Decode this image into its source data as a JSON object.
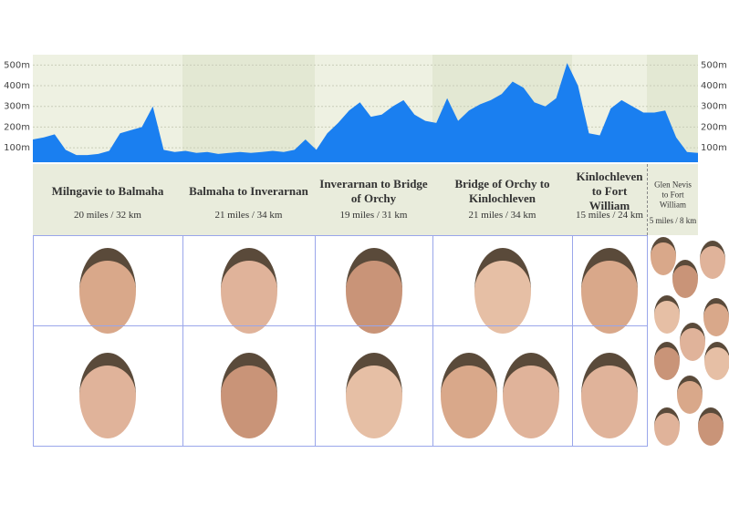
{
  "chart_data": {
    "type": "area",
    "color": "#1a7ff0",
    "values": [
      140,
      150,
      165,
      90,
      65,
      65,
      70,
      85,
      170,
      185,
      200,
      300,
      90,
      80,
      85,
      75,
      80,
      70,
      75,
      80,
      75,
      80,
      85,
      80,
      90,
      140,
      90,
      170,
      220,
      280,
      320,
      250,
      260,
      300,
      330,
      260,
      230,
      220,
      340,
      230,
      280,
      310,
      330,
      360,
      420,
      390,
      320,
      300,
      340,
      510,
      400,
      170,
      160,
      290,
      330,
      300,
      270,
      270,
      280,
      150,
      80,
      75
    ],
    "ylim": [
      30,
      550
    ],
    "yticks": [
      {
        "value": 100,
        "label": "100m"
      },
      {
        "value": 200,
        "label": "200m"
      },
      {
        "value": 300,
        "label": "300m"
      },
      {
        "value": 400,
        "label": "400m"
      },
      {
        "value": 500,
        "label": "500m"
      }
    ],
    "grid": true,
    "stages": [
      {
        "name": "Milngavie to Balmaha",
        "distance": "20 miles / 32 km"
      },
      {
        "name": "Balmaha to Inverarnan",
        "distance": "21 miles / 34 km"
      },
      {
        "name": "Inverarnan to Bridge of Orchy",
        "distance": "19 miles / 31 km"
      },
      {
        "name": "Bridge of Orchy to Kinlochleven",
        "distance": "21 miles / 34 km"
      },
      {
        "name": "Kinlochleven to Fort William",
        "distance": "15 miles / 24 km"
      },
      {
        "name": "Glen Nevis to Fort William",
        "distance": "5 miles / 8 km"
      }
    ]
  }
}
